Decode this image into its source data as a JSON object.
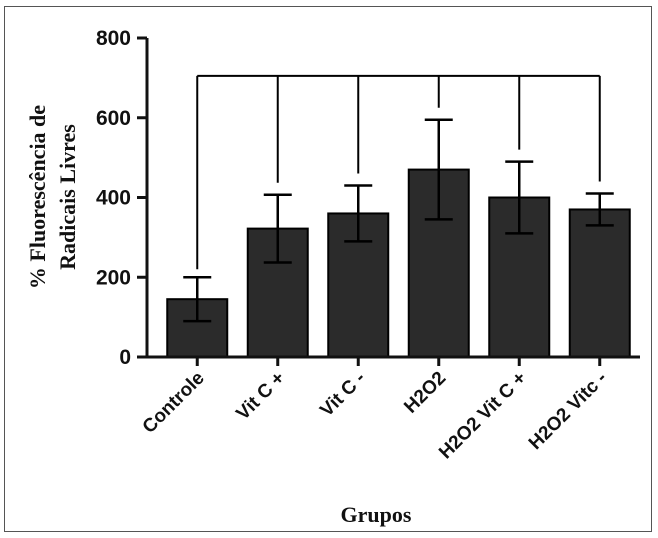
{
  "chart_data": {
    "type": "bar",
    "categories": [
      "Controle",
      "Vit C +",
      "Vit C -",
      "H2O2",
      "H2O2 Vit C +",
      "H2O2 Vitc -"
    ],
    "values": [
      145,
      322,
      360,
      470,
      400,
      370
    ],
    "error": [
      55,
      85,
      70,
      125,
      90,
      40
    ],
    "ylabel_line1": "% Fluorescência de",
    "ylabel_line2": "Radicais Livres",
    "xlabel": "Grupos",
    "ylim": [
      0,
      800
    ],
    "yticks": [
      0,
      200,
      400,
      600,
      800
    ],
    "colors": {
      "bar": "#2b2b2b",
      "axis": "#111111"
    },
    "significance_bracket": {
      "from": "Controle",
      "to_all": true,
      "level": 705
    }
  }
}
